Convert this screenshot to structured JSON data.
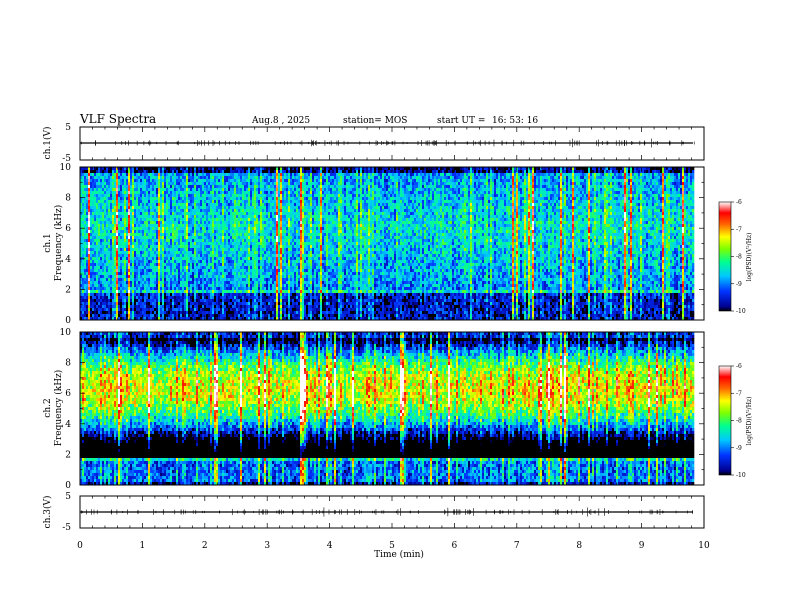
{
  "header": {
    "title": "VLF Spectra",
    "date": "Aug.8 , 2025",
    "station": "station= MOS",
    "start_label": "start UT =",
    "start_time": "16: 53: 16"
  },
  "colors": {
    "background": "#000000",
    "waveform": "#000000"
  },
  "chart_data": [
    {
      "id": "ch1-waveform",
      "type": "line",
      "ylabel": "ch.1(V)",
      "ylim": [
        -5,
        5
      ],
      "yticks": [
        "5",
        "-5"
      ],
      "baseline": 0
    },
    {
      "id": "ch1-spectrogram",
      "type": "heatmap",
      "ylabel": "ch.1 Frequency (kHz)",
      "ylabel_line1": "ch.1",
      "ylabel_line2": "Frequency (kHz)",
      "ylim": [
        0,
        10
      ],
      "yticks": [
        "0",
        "2",
        "4",
        "6",
        "8",
        "10"
      ],
      "colorbar": {
        "label": "log(PSD)(V²/Hz)",
        "range": [
          -10,
          -6
        ],
        "ticks": [
          "-6",
          "-7",
          "-8",
          "-9",
          "-10"
        ]
      }
    },
    {
      "id": "ch2-spectrogram",
      "type": "heatmap",
      "ylabel": "ch.2 Frequency (kHz)",
      "ylabel_line1": "ch.2",
      "ylabel_line2": "Frequency (kHz)",
      "ylim": [
        0,
        10
      ],
      "yticks": [
        "0",
        "2",
        "4",
        "6",
        "8",
        "10"
      ],
      "colorbar": {
        "label": "log(PSD)(V²/Hz)",
        "range": [
          -10,
          -6
        ],
        "ticks": [
          "-6",
          "-7",
          "-8",
          "-9",
          "-10"
        ]
      }
    },
    {
      "id": "ch3-waveform",
      "type": "line",
      "ylabel": "ch.3(V)",
      "ylim": [
        -5,
        5
      ],
      "yticks": [
        "5",
        "-5"
      ],
      "baseline": 0
    }
  ],
  "x_axis": {
    "label": "Time (min)",
    "range": [
      0,
      10
    ],
    "ticks": [
      "0",
      "1",
      "2",
      "3",
      "4",
      "5",
      "6",
      "7",
      "8",
      "9",
      "10"
    ],
    "data_end": 9.85
  }
}
